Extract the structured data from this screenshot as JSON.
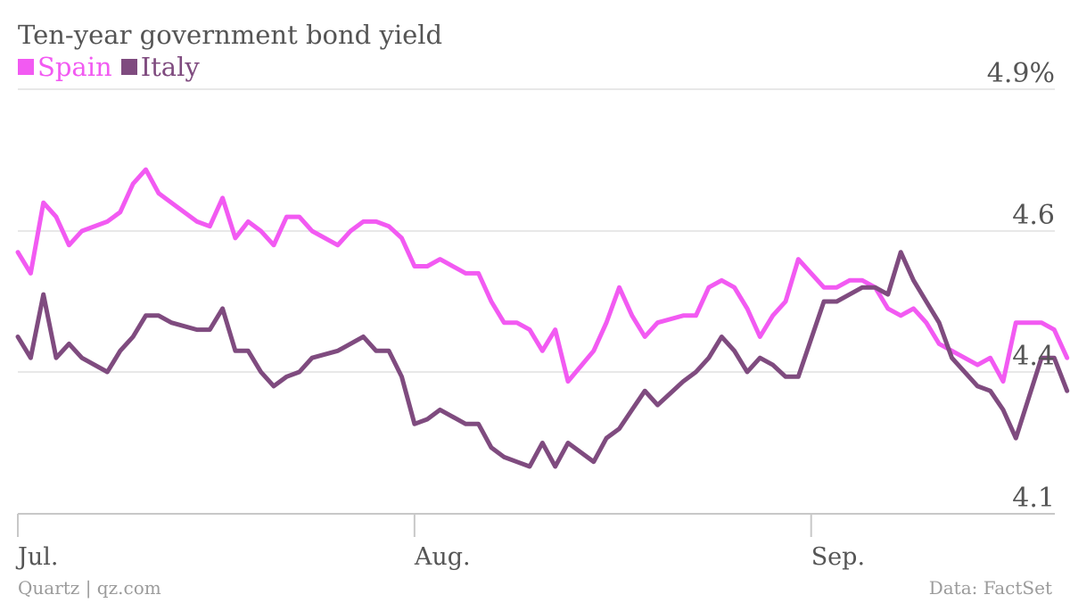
{
  "chart_data": {
    "type": "line",
    "title": "Ten-year government bond yield",
    "x": [
      0,
      1,
      2,
      3,
      4,
      5,
      7,
      8,
      9,
      10,
      11,
      12,
      14,
      15,
      16,
      17,
      18,
      19,
      20,
      21,
      22,
      23,
      25,
      26,
      27,
      28,
      29,
      30,
      31,
      32,
      33,
      35,
      36,
      37,
      38,
      39,
      40,
      41,
      42,
      43,
      45,
      46,
      47,
      48,
      49,
      50,
      52,
      53,
      54,
      55,
      56,
      57,
      58,
      59,
      60,
      61,
      63,
      64,
      65,
      66,
      67,
      68,
      69,
      70,
      71,
      72,
      73,
      75,
      76,
      77,
      78,
      80,
      81,
      82
    ],
    "x_ticks": [
      {
        "label": "Jul.",
        "x": 0
      },
      {
        "label": "Aug.",
        "x": 31
      },
      {
        "label": "Sep.",
        "x": 62
      }
    ],
    "series": [
      {
        "name": "Spain",
        "color": "#f25af2",
        "values": [
          4.57,
          4.54,
          4.66,
          4.63,
          4.58,
          4.6,
          4.62,
          4.64,
          4.7,
          4.73,
          4.68,
          4.66,
          4.62,
          4.61,
          4.67,
          4.59,
          4.62,
          4.6,
          4.58,
          4.63,
          4.63,
          4.6,
          4.58,
          4.6,
          4.62,
          4.62,
          4.61,
          4.59,
          4.55,
          4.55,
          4.56,
          4.54,
          4.54,
          4.5,
          4.47,
          4.47,
          4.46,
          4.43,
          4.46,
          4.38,
          4.43,
          4.47,
          4.52,
          4.48,
          4.45,
          4.47,
          4.48,
          4.48,
          4.52,
          4.53,
          4.52,
          4.49,
          4.45,
          4.48,
          4.5,
          4.56,
          4.52,
          4.52,
          4.53,
          4.53,
          4.52,
          4.49,
          4.48,
          4.49,
          4.47,
          4.44,
          4.43,
          4.41,
          4.42,
          4.38,
          4.47,
          4.47,
          4.46,
          4.42
        ]
      },
      {
        "name": "Italy",
        "color": "#7f4b7f",
        "values": [
          4.45,
          4.42,
          4.51,
          4.42,
          4.44,
          4.42,
          4.4,
          4.43,
          4.45,
          4.48,
          4.48,
          4.47,
          4.46,
          4.46,
          4.49,
          4.43,
          4.43,
          4.4,
          4.37,
          4.39,
          4.4,
          4.42,
          4.43,
          4.44,
          4.45,
          4.43,
          4.43,
          4.39,
          4.29,
          4.3,
          4.32,
          4.29,
          4.29,
          4.24,
          4.22,
          4.21,
          4.2,
          4.25,
          4.2,
          4.25,
          4.21,
          4.26,
          4.28,
          4.32,
          4.36,
          4.33,
          4.38,
          4.4,
          4.42,
          4.45,
          4.43,
          4.4,
          4.42,
          4.41,
          4.39,
          4.39,
          4.5,
          4.5,
          4.51,
          4.52,
          4.52,
          4.51,
          4.57,
          4.53,
          4.5,
          4.47,
          4.42,
          4.37,
          4.36,
          4.32,
          4.26,
          4.42,
          4.42,
          4.36
        ]
      }
    ],
    "y_ticks": [
      4.1,
      4.4,
      4.6,
      4.9
    ],
    "y_tick_labels": [
      "4.1",
      "4.4",
      "4.6",
      "4.9%"
    ],
    "ylim": [
      4.1,
      4.9
    ],
    "xlim": [
      0,
      80
    ],
    "legend_placement": "top-left",
    "grid": "horizontal",
    "source": "Data: FactSet",
    "credit": "Quartz | qz.com"
  }
}
